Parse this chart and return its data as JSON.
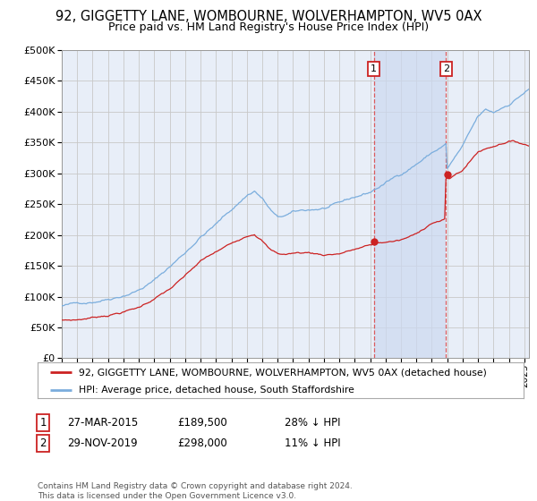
{
  "title": "92, GIGGETTY LANE, WOMBOURNE, WOLVERHAMPTON, WV5 0AX",
  "subtitle": "Price paid vs. HM Land Registry's House Price Index (HPI)",
  "title_fontsize": 10.5,
  "subtitle_fontsize": 9,
  "ylim": [
    0,
    500000
  ],
  "yticks": [
    0,
    50000,
    100000,
    150000,
    200000,
    250000,
    300000,
    350000,
    400000,
    450000,
    500000
  ],
  "bg_color": "#ffffff",
  "plot_bg_color": "#e8eef8",
  "grid_color": "#c8c8c8",
  "hpi_color": "#7aaddd",
  "price_color": "#cc2222",
  "sale1_date": 2015.24,
  "sale1_price": 189500,
  "sale2_date": 2019.92,
  "sale2_price": 298000,
  "sale1_label": "27-MAR-2015",
  "sale1_amount": "£189,500",
  "sale1_hpi": "28% ↓ HPI",
  "sale2_label": "29-NOV-2019",
  "sale2_amount": "£298,000",
  "sale2_hpi": "11% ↓ HPI",
  "legend_line1": "92, GIGGETTY LANE, WOMBOURNE, WOLVERHAMPTON, WV5 0AX (detached house)",
  "legend_line2": "HPI: Average price, detached house, South Staffordshire",
  "footer": "Contains HM Land Registry data © Crown copyright and database right 2024.\nThis data is licensed under the Open Government Licence v3.0.",
  "xstart": 1995.0,
  "xend": 2025.3,
  "sale2_dot_year": 2020.0
}
